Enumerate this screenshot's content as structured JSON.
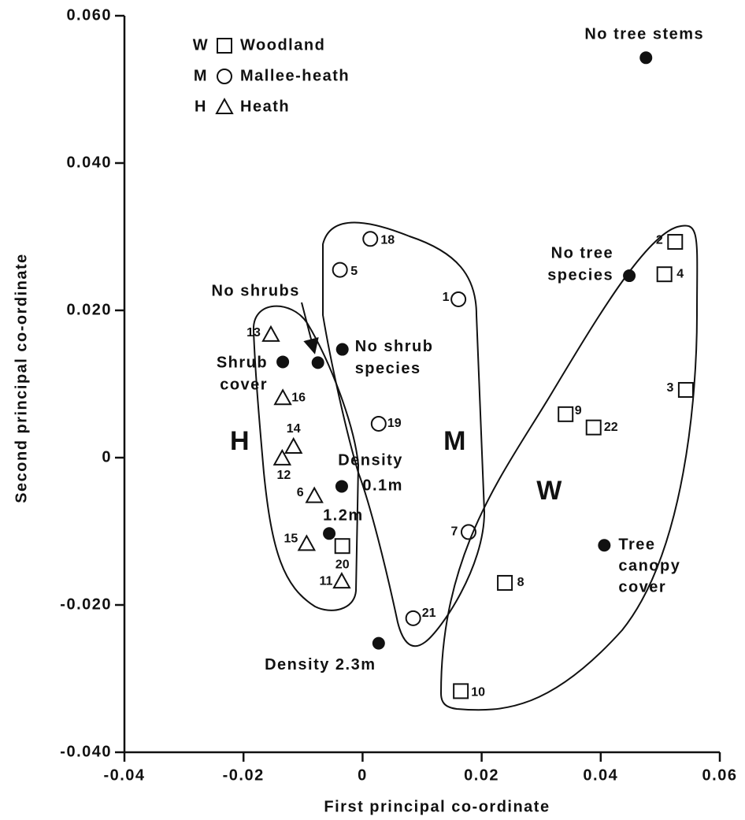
{
  "chart_data": {
    "type": "scatter",
    "xlabel": "First principal co-ordinate",
    "ylabel": "Second principal co-ordinate",
    "xlim": [
      -0.04,
      0.06
    ],
    "ylim": [
      -0.04,
      0.06
    ],
    "xticks": [
      -0.04,
      -0.02,
      0,
      0.02,
      0.04,
      0.06
    ],
    "yticks": [
      {
        "value": -0.04,
        "label": "-0.040"
      },
      {
        "value": -0.02,
        "label": "-0.020"
      },
      0,
      {
        "value": 0.02,
        "label": "0.020"
      },
      {
        "value": 0.04,
        "label": "0.040"
      },
      {
        "value": 0.06,
        "label": "0.060"
      }
    ],
    "series": [
      {
        "name": "Woodland",
        "symbol": "W",
        "marker": "square",
        "group_label": "W",
        "x": [
          0.0525,
          0.0507,
          0.0543,
          0.0341,
          0.0388,
          0.0239,
          0.0165,
          -0.0034
        ],
        "values": [
          0.0293,
          0.0249,
          0.0092,
          0.0059,
          0.0041,
          -0.017,
          -0.0317,
          -0.012
        ],
        "labels": [
          "2",
          "4",
          "3",
          "9",
          "22",
          "8",
          "10",
          "20"
        ]
      },
      {
        "name": "Mallee-heath",
        "symbol": "M",
        "marker": "circle",
        "group_label": "M",
        "x": [
          0.0013,
          -0.0038,
          0.0161,
          0.0027,
          0.0178,
          0.0085
        ],
        "values": [
          0.0297,
          0.0255,
          0.0215,
          0.0046,
          -0.0101,
          -0.0218
        ],
        "labels": [
          "18",
          "5",
          "1",
          "19",
          "7",
          "21"
        ]
      },
      {
        "name": "Heath",
        "symbol": "H",
        "marker": "triangle",
        "group_label": "H",
        "x": [
          -0.0154,
          -0.0134,
          -0.0116,
          -0.0135,
          -0.0081,
          -0.0094,
          -0.0035
        ],
        "values": [
          0.0167,
          0.0081,
          0.0015,
          -0.0001,
          -0.0052,
          -0.0117,
          -0.0168
        ],
        "labels": [
          "13",
          "16",
          "14",
          "12",
          "6",
          "15",
          "11"
        ]
      },
      {
        "marker": "filled-circle",
        "x": [
          0.0476,
          0.0448,
          0.0406,
          -0.0034,
          -0.0075,
          -0.0134,
          -0.0035,
          -0.0056,
          0.0027
        ],
        "values": [
          0.0543,
          0.0247,
          -0.0119,
          0.0147,
          0.0129,
          0.013,
          -0.0039,
          -0.0103,
          -0.0252
        ],
        "labels": [
          [
            "No tree stems"
          ],
          [
            "No tree",
            "species"
          ],
          [
            "Tree",
            "canopy",
            "cover"
          ],
          [
            "No shrub",
            "species"
          ],
          [
            "No shrubs"
          ],
          [
            "Shrub",
            "cover"
          ],
          [
            "Density",
            "0.1m"
          ],
          [
            "1.2m"
          ],
          [
            "Density 2.3m"
          ]
        ]
      }
    ]
  }
}
